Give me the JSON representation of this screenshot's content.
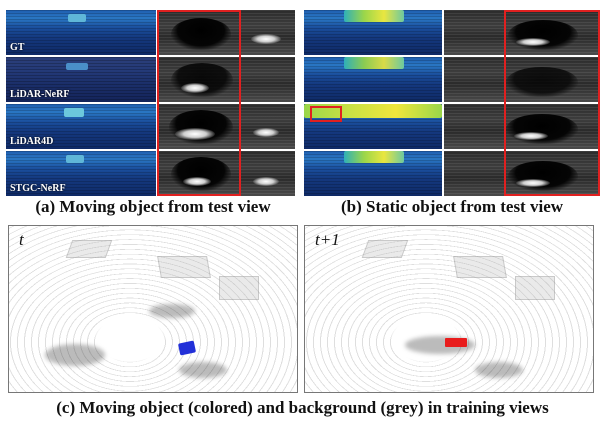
{
  "panel_a": {
    "row_labels": [
      "GT",
      "LiDAR-NeRF",
      "LiDAR4D",
      "STGC-NeRF"
    ],
    "caption": "(a) Moving object from test view"
  },
  "panel_b": {
    "caption": "(b) Static object from test view"
  },
  "panel_c": {
    "left_label": "t",
    "right_label": "t+1",
    "caption": "(c) Moving object (colored) and background (grey) in training views"
  },
  "colors": {
    "highlight_box": "#e02020",
    "moving_object_t": "#2230d8",
    "moving_object_t1": "#e81c1c"
  }
}
